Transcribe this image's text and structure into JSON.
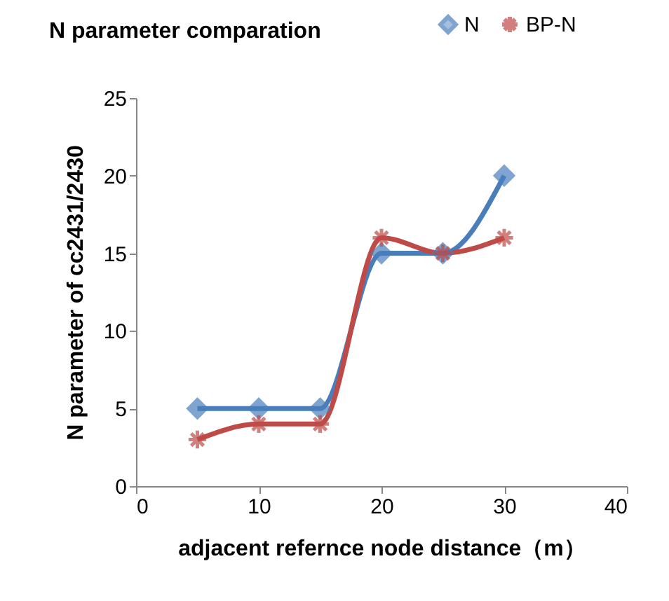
{
  "chart_data": {
    "type": "line",
    "title": "N parameter comparation",
    "xlabel": "adjacent refernce node distance（m）",
    "ylabel": "N parameter of cc2431/2430",
    "x": [
      5,
      10,
      15,
      20,
      25,
      30
    ],
    "series": [
      {
        "name": "N",
        "color": "#4a7ebb",
        "marker": "diamond",
        "values": [
          5,
          5,
          5,
          15,
          15,
          20
        ]
      },
      {
        "name": "BP-N",
        "color": "#be4b48",
        "marker": "cross",
        "values": [
          3,
          4,
          4,
          16,
          15,
          16
        ]
      }
    ],
    "xlim": [
      0,
      40
    ],
    "xticks": [
      0,
      10,
      20,
      30,
      40
    ],
    "ylim": [
      0,
      25
    ],
    "yticks": [
      0,
      5,
      10,
      15,
      20,
      25
    ],
    "grid": false,
    "legend": "top right",
    "line_style": "solid"
  }
}
